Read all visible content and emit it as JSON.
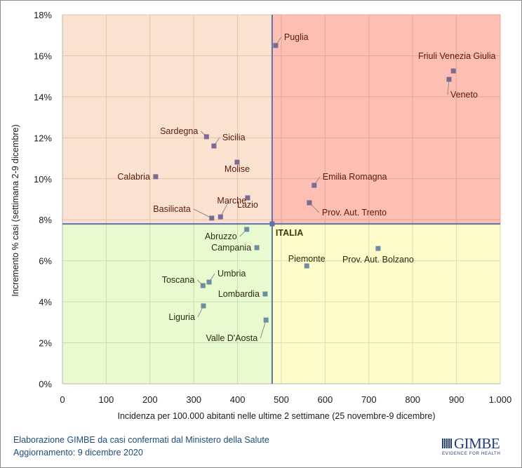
{
  "chart_data": {
    "type": "scatter",
    "title": "",
    "xlabel": "Incidenza per 100.000 abitanti nelle ultime 2 settimane (25 novembre-9 dicembre)",
    "ylabel": "Incremento % casi (settimana 2-9 dicembre)",
    "xlim": [
      0,
      1000
    ],
    "ylim": [
      0,
      18
    ],
    "x_ticks": [
      0,
      100,
      200,
      300,
      400,
      500,
      600,
      700,
      800,
      900,
      1000
    ],
    "x_tick_labels": [
      "0",
      "100",
      "200",
      "300",
      "400",
      "500",
      "600",
      "700",
      "800",
      "900",
      "1.000"
    ],
    "y_ticks": [
      0,
      2,
      4,
      6,
      8,
      10,
      12,
      14,
      16,
      18
    ],
    "y_tick_labels": [
      "0%",
      "2%",
      "4%",
      "6%",
      "8%",
      "10%",
      "12%",
      "14%",
      "16%",
      "18%"
    ],
    "grid": true,
    "reference": {
      "name": "ITALIA",
      "x": 479,
      "y": 7.8
    },
    "quadrant_colors": {
      "top_left": "#fbe2d0",
      "top_right": "#fdbfb3",
      "bottom_left": "#e9fad0",
      "bottom_right": "#fefccb"
    },
    "marker_colors": {
      "upper": "#7a6a94",
      "lower": "#6b8fa0"
    },
    "reference_line_color": "#5b73a6",
    "label_colors": {
      "upper": "#5a1a0a",
      "lower": "#2a2a10"
    },
    "points": [
      {
        "name": "Puglia",
        "x": 487,
        "y": 16.5,
        "label_pos": "upper-right"
      },
      {
        "name": "Friuli Venezia Giulia",
        "x": 893,
        "y": 15.26,
        "label_pos": "above"
      },
      {
        "name": "Veneto",
        "x": 883,
        "y": 14.85,
        "label_pos": "lower-right"
      },
      {
        "name": "Sardegna",
        "x": 329,
        "y": 12.05,
        "label_pos": "upper-left"
      },
      {
        "name": "Sicilia",
        "x": 346,
        "y": 11.6,
        "label_pos": "upper-right"
      },
      {
        "name": "Molise",
        "x": 399,
        "y": 10.81,
        "label_pos": "below"
      },
      {
        "name": "Calabria",
        "x": 213,
        "y": 10.1,
        "label_pos": "left"
      },
      {
        "name": "Lazio",
        "x": 423,
        "y": 9.07,
        "label_pos": "below"
      },
      {
        "name": "Emilia Romagna",
        "x": 575,
        "y": 9.68,
        "label_pos": "upper-right"
      },
      {
        "name": "Prov. Aut. Trento",
        "x": 564,
        "y": 8.83,
        "label_pos": "lower-right"
      },
      {
        "name": "Marche",
        "x": 361,
        "y": 8.14,
        "label_pos": "upper-left"
      },
      {
        "name": "Basilicata",
        "x": 341,
        "y": 8.08,
        "label_pos": "upper-left"
      },
      {
        "name": "Abruzzo",
        "x": 421,
        "y": 7.53,
        "label_pos": "lower-left"
      },
      {
        "name": "Campania",
        "x": 444,
        "y": 6.64,
        "label_pos": "left"
      },
      {
        "name": "Prov. Aut. Bolzano",
        "x": 721,
        "y": 6.6,
        "label_pos": "below"
      },
      {
        "name": "Piemonte",
        "x": 558,
        "y": 5.75,
        "label_pos": "above"
      },
      {
        "name": "Umbria",
        "x": 335,
        "y": 4.96,
        "label_pos": "upper-right"
      },
      {
        "name": "Toscana",
        "x": 321,
        "y": 4.79,
        "label_pos": "upper-left"
      },
      {
        "name": "Lombardia",
        "x": 463,
        "y": 4.38,
        "label_pos": "left"
      },
      {
        "name": "Liguria",
        "x": 322,
        "y": 3.8,
        "label_pos": "lower-left"
      },
      {
        "name": "Valle D'Aosta",
        "x": 465,
        "y": 3.11,
        "label_pos": "lower-left"
      }
    ]
  },
  "footer": {
    "line1": "Elaborazione GIMBE da casi confermati dal Ministero della Salute",
    "line2": "Aggiornamento: 9 dicembre 2020"
  },
  "logo": {
    "name": "GIMBE",
    "tagline": "EVIDENCE FOR HEALTH"
  }
}
